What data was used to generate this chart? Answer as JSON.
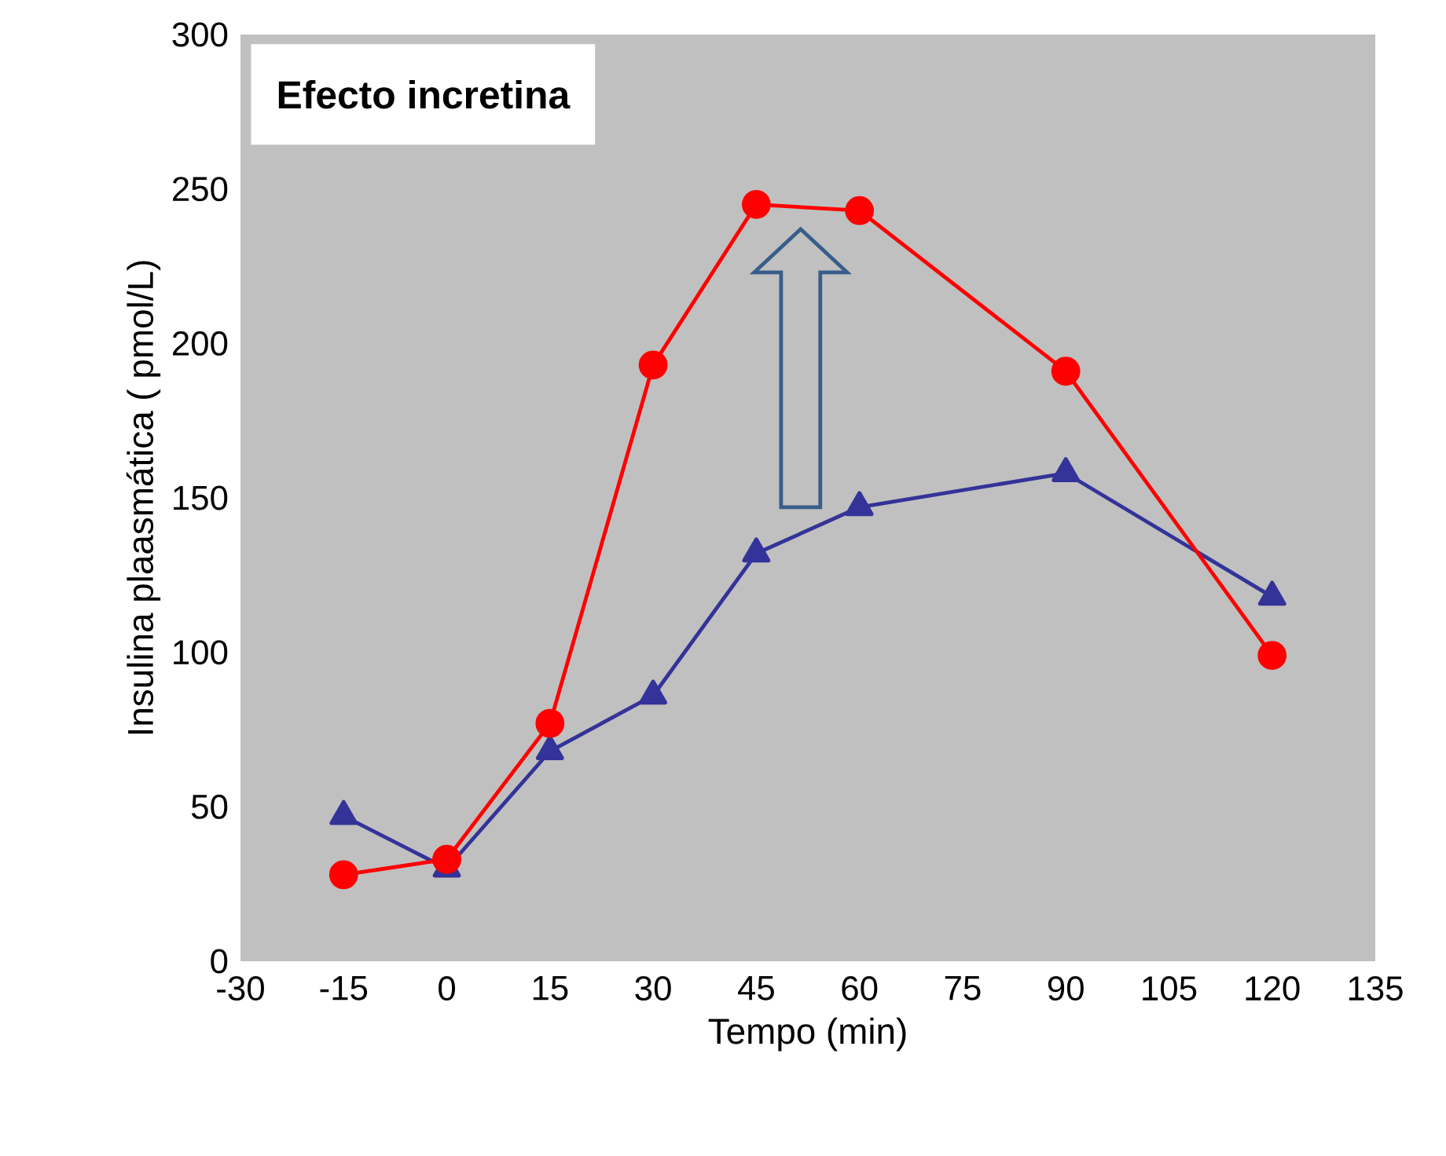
{
  "chart_data": {
    "type": "line",
    "xlabel": "Tempo (min)",
    "ylabel": "Insulina plaasmática ( pmol/L)",
    "x": [
      -15,
      0,
      15,
      30,
      45,
      60,
      90,
      120
    ],
    "series": [
      {
        "color": "#333399",
        "marker": "triangle",
        "values": [
          47,
          30,
          68,
          86,
          132,
          147,
          158,
          118
        ]
      },
      {
        "color": "#ff0000",
        "marker": "circle",
        "values": [
          28,
          33,
          77,
          193,
          245,
          243,
          191,
          99
        ]
      }
    ],
    "xlim": [
      -30,
      135
    ],
    "xticks": [
      -30,
      -15,
      0,
      15,
      30,
      45,
      60,
      75,
      90,
      105,
      120,
      135
    ],
    "ylim": [
      0,
      300
    ],
    "yticks": [
      0,
      50,
      100,
      150,
      200,
      250,
      300
    ],
    "line_style": "solid",
    "grid": false,
    "annotations": [
      "Efecto incretina"
    ]
  }
}
